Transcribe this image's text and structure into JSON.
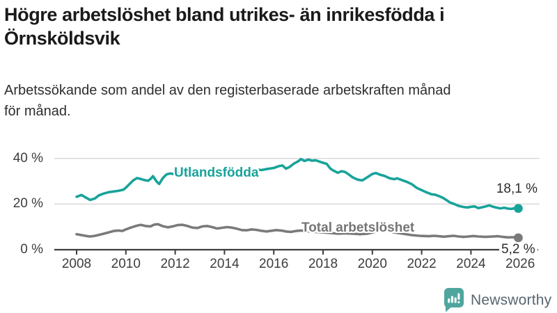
{
  "title": "Högre arbetslöshet bland utrikes- än inrikesfödda i Örnsköldsvik",
  "subtitle": "Arbetssökande som andel av den registerbaserade arbetskraften månad\nför månad.",
  "colors": {
    "series_foreign_born": "#18a39a",
    "series_total": "#7a7a7a",
    "axis": "#3d3d3d",
    "gridline": "#d9d9d9",
    "value_label": "#2b2b2b",
    "logo_teal": "#4ea69e",
    "logo_text": "#57666f"
  },
  "branding": {
    "logo_text": "Newsworthy",
    "icon": "newsworthy-chart-bubble-icon"
  },
  "chart_data": {
    "type": "line",
    "title": "Högre arbetslöshet bland utrikes- än inrikesfödda i Örnsköldsvik",
    "subtitle": "Arbetssökande som andel av den registerbaserade arbetskraften månad för månad.",
    "xlabel": "",
    "ylabel": "",
    "x_unit": "year (monthly data)",
    "y_unit": "percent",
    "xlim": [
      2007.1,
      2026.8
    ],
    "ylim": [
      0,
      44
    ],
    "grid": "horizontal gridlines at 20 and 40",
    "legend_position": "inline labels on lines",
    "y_ticks": [
      {
        "value": 0,
        "label": "0 %"
      },
      {
        "value": 20,
        "label": "20 %"
      },
      {
        "value": 40,
        "label": "40 %"
      }
    ],
    "x_ticks": [
      {
        "value": 2008,
        "label": "2008"
      },
      {
        "value": 2010,
        "label": "2010"
      },
      {
        "value": 2012,
        "label": "2012"
      },
      {
        "value": 2014,
        "label": "2014"
      },
      {
        "value": 2016,
        "label": "2016"
      },
      {
        "value": 2018,
        "label": "2018"
      },
      {
        "value": 2020,
        "label": "2020"
      },
      {
        "value": 2022,
        "label": "2022"
      },
      {
        "value": 2024,
        "label": "2024"
      },
      {
        "value": 2026,
        "label": "2026"
      }
    ],
    "series": [
      {
        "name": "Utlandsfödda",
        "color": "#18a39a",
        "end_label": "18,1 %",
        "end_value": 18.1,
        "points": [
          [
            2008.0,
            23.2
          ],
          [
            2008.2,
            24.0
          ],
          [
            2008.35,
            23.0
          ],
          [
            2008.55,
            21.8
          ],
          [
            2008.75,
            22.5
          ],
          [
            2008.9,
            23.8
          ],
          [
            2009.1,
            24.6
          ],
          [
            2009.3,
            25.2
          ],
          [
            2009.5,
            25.5
          ],
          [
            2009.7,
            25.8
          ],
          [
            2009.9,
            26.3
          ],
          [
            2010.0,
            27.2
          ],
          [
            2010.15,
            28.8
          ],
          [
            2010.3,
            30.4
          ],
          [
            2010.45,
            31.4
          ],
          [
            2010.6,
            31.0
          ],
          [
            2010.75,
            30.5
          ],
          [
            2010.9,
            30.2
          ],
          [
            2011.0,
            31.0
          ],
          [
            2011.1,
            32.2
          ],
          [
            2011.25,
            29.8
          ],
          [
            2011.35,
            28.8
          ],
          [
            2011.5,
            31.4
          ],
          [
            2011.65,
            33.0
          ],
          [
            2011.8,
            33.4
          ],
          [
            2012.0,
            33.0
          ],
          [
            2012.25,
            33.5
          ],
          [
            2012.5,
            33.1
          ],
          [
            2012.75,
            33.6
          ],
          [
            2013.0,
            33.8
          ],
          [
            2013.25,
            34.1
          ],
          [
            2013.5,
            33.7
          ],
          [
            2013.75,
            34.2
          ],
          [
            2014.0,
            34.4
          ],
          [
            2014.25,
            34.0
          ],
          [
            2014.5,
            34.6
          ],
          [
            2014.75,
            34.3
          ],
          [
            2015.0,
            34.8
          ],
          [
            2015.25,
            35.2
          ],
          [
            2015.5,
            34.9
          ],
          [
            2015.75,
            35.4
          ],
          [
            2016.0,
            35.8
          ],
          [
            2016.2,
            36.6
          ],
          [
            2016.35,
            36.9
          ],
          [
            2016.5,
            35.5
          ],
          [
            2016.65,
            36.3
          ],
          [
            2016.8,
            37.6
          ],
          [
            2017.0,
            38.8
          ],
          [
            2017.1,
            39.7
          ],
          [
            2017.25,
            38.9
          ],
          [
            2017.4,
            39.5
          ],
          [
            2017.55,
            39.0
          ],
          [
            2017.7,
            39.2
          ],
          [
            2017.85,
            38.6
          ],
          [
            2018.0,
            38.1
          ],
          [
            2018.15,
            37.6
          ],
          [
            2018.3,
            35.5
          ],
          [
            2018.45,
            34.5
          ],
          [
            2018.6,
            33.7
          ],
          [
            2018.75,
            34.4
          ],
          [
            2018.9,
            34.0
          ],
          [
            2019.0,
            33.3
          ],
          [
            2019.2,
            31.7
          ],
          [
            2019.4,
            30.7
          ],
          [
            2019.6,
            30.4
          ],
          [
            2019.8,
            31.8
          ],
          [
            2020.0,
            33.2
          ],
          [
            2020.15,
            33.6
          ],
          [
            2020.3,
            32.9
          ],
          [
            2020.5,
            32.3
          ],
          [
            2020.7,
            31.3
          ],
          [
            2020.9,
            30.9
          ],
          [
            2021.0,
            31.3
          ],
          [
            2021.2,
            30.5
          ],
          [
            2021.4,
            29.7
          ],
          [
            2021.6,
            28.7
          ],
          [
            2021.8,
            27.1
          ],
          [
            2022.0,
            26.1
          ],
          [
            2022.2,
            25.1
          ],
          [
            2022.4,
            24.3
          ],
          [
            2022.55,
            24.1
          ],
          [
            2022.7,
            23.5
          ],
          [
            2022.85,
            22.8
          ],
          [
            2023.0,
            21.8
          ],
          [
            2023.15,
            20.7
          ],
          [
            2023.3,
            20.1
          ],
          [
            2023.5,
            19.2
          ],
          [
            2023.7,
            18.7
          ],
          [
            2023.85,
            18.5
          ],
          [
            2024.0,
            18.8
          ],
          [
            2024.15,
            19.0
          ],
          [
            2024.3,
            18.2
          ],
          [
            2024.45,
            18.6
          ],
          [
            2024.6,
            19.0
          ],
          [
            2024.75,
            19.4
          ],
          [
            2024.9,
            18.8
          ],
          [
            2025.05,
            18.4
          ],
          [
            2025.2,
            18.1
          ],
          [
            2025.35,
            18.4
          ],
          [
            2025.5,
            18.0
          ],
          [
            2025.65,
            17.9
          ],
          [
            2025.8,
            18.3
          ],
          [
            2025.92,
            18.1
          ]
        ]
      },
      {
        "name": "Total arbetslöshet",
        "color": "#7a7a7a",
        "end_label": "5,2 %",
        "end_value": 5.2,
        "points": [
          [
            2008.0,
            6.8
          ],
          [
            2008.2,
            6.4
          ],
          [
            2008.4,
            6.0
          ],
          [
            2008.55,
            5.8
          ],
          [
            2008.75,
            6.1
          ],
          [
            2008.9,
            6.5
          ],
          [
            2009.1,
            7.0
          ],
          [
            2009.3,
            7.6
          ],
          [
            2009.5,
            8.2
          ],
          [
            2009.7,
            8.4
          ],
          [
            2009.85,
            8.2
          ],
          [
            2010.0,
            8.9
          ],
          [
            2010.2,
            9.7
          ],
          [
            2010.4,
            10.4
          ],
          [
            2010.6,
            10.9
          ],
          [
            2010.8,
            10.4
          ],
          [
            2011.0,
            10.2
          ],
          [
            2011.15,
            11.0
          ],
          [
            2011.3,
            11.2
          ],
          [
            2011.5,
            10.3
          ],
          [
            2011.7,
            9.8
          ],
          [
            2011.9,
            10.2
          ],
          [
            2012.1,
            10.8
          ],
          [
            2012.3,
            10.9
          ],
          [
            2012.5,
            10.4
          ],
          [
            2012.7,
            9.7
          ],
          [
            2012.9,
            9.5
          ],
          [
            2013.1,
            10.2
          ],
          [
            2013.3,
            10.4
          ],
          [
            2013.5,
            9.9
          ],
          [
            2013.7,
            9.3
          ],
          [
            2013.9,
            9.6
          ],
          [
            2014.1,
            9.9
          ],
          [
            2014.3,
            9.7
          ],
          [
            2014.5,
            9.2
          ],
          [
            2014.7,
            8.6
          ],
          [
            2014.9,
            8.5
          ],
          [
            2015.1,
            8.9
          ],
          [
            2015.3,
            8.7
          ],
          [
            2015.5,
            8.3
          ],
          [
            2015.7,
            8.0
          ],
          [
            2015.9,
            8.3
          ],
          [
            2016.1,
            8.6
          ],
          [
            2016.3,
            8.4
          ],
          [
            2016.5,
            8.0
          ],
          [
            2016.7,
            7.8
          ],
          [
            2016.9,
            8.2
          ],
          [
            2017.1,
            8.4
          ],
          [
            2017.4,
            8.0
          ],
          [
            2017.7,
            7.8
          ],
          [
            2018.0,
            7.6
          ],
          [
            2018.3,
            7.3
          ],
          [
            2018.6,
            7.0
          ],
          [
            2018.9,
            7.2
          ],
          [
            2019.2,
            7.0
          ],
          [
            2019.5,
            6.8
          ],
          [
            2019.8,
            7.0
          ],
          [
            2020.1,
            7.8
          ],
          [
            2020.4,
            8.4
          ],
          [
            2020.7,
            8.0
          ],
          [
            2021.0,
            7.4
          ],
          [
            2021.3,
            6.9
          ],
          [
            2021.6,
            6.4
          ],
          [
            2021.9,
            6.1
          ],
          [
            2022.1,
            6.0
          ],
          [
            2022.3,
            5.9
          ],
          [
            2022.5,
            6.1
          ],
          [
            2022.7,
            5.9
          ],
          [
            2022.9,
            5.7
          ],
          [
            2023.1,
            5.9
          ],
          [
            2023.3,
            6.1
          ],
          [
            2023.5,
            5.8
          ],
          [
            2023.7,
            5.6
          ],
          [
            2023.9,
            5.8
          ],
          [
            2024.1,
            6.0
          ],
          [
            2024.3,
            5.8
          ],
          [
            2024.6,
            5.6
          ],
          [
            2024.9,
            5.8
          ],
          [
            2025.1,
            5.9
          ],
          [
            2025.3,
            5.6
          ],
          [
            2025.5,
            5.4
          ],
          [
            2025.7,
            5.5
          ],
          [
            2025.92,
            5.2
          ]
        ]
      }
    ]
  }
}
